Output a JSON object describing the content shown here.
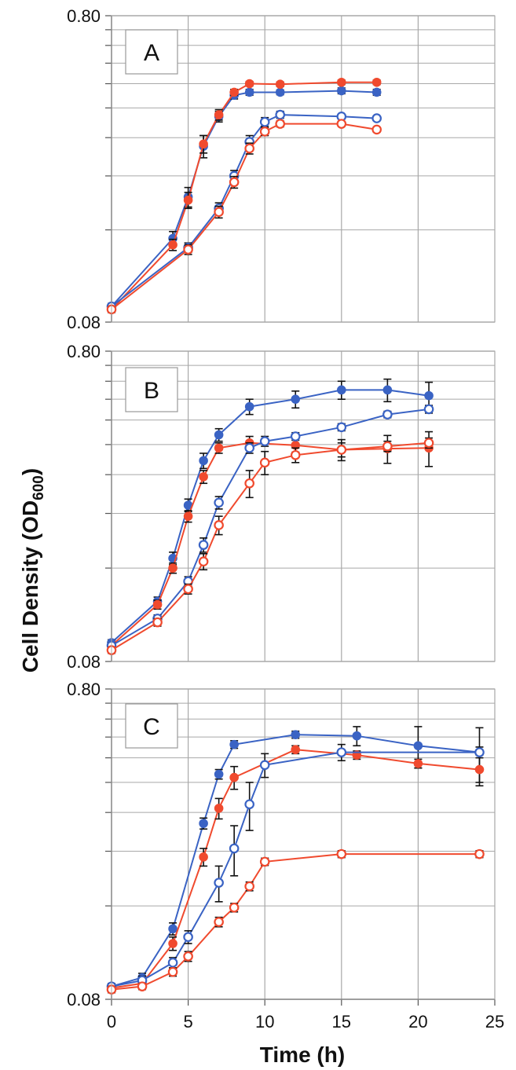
{
  "figure": {
    "ylabel_main": "Cell Density (OD",
    "ylabel_sub": "600",
    "ylabel_close": ")",
    "xlabel": "Time (h)"
  },
  "colors": {
    "blue": "#3a63c4",
    "red": "#f04a2e",
    "grid": "#a8a8a8",
    "axis": "#555555"
  },
  "chart_data": [
    {
      "type": "line",
      "panel_label": "A",
      "yscale": "log",
      "ylim": [
        0.08,
        0.8
      ],
      "ytick_labels": [
        "0.80",
        "0.08"
      ],
      "xlim": [
        0,
        25
      ],
      "x_ticks_shown": false,
      "grid": true,
      "series": [
        {
          "marker": "filled",
          "color": "blue",
          "x": [
            0,
            4,
            5,
            6,
            7,
            8,
            9,
            11,
            15,
            17.3
          ],
          "y": [
            0.09,
            0.15,
            0.205,
            0.3,
            0.375,
            0.44,
            0.45,
            0.45,
            0.455,
            0.45
          ],
          "err": [
            0.002,
            0.008,
            0.015,
            0.025,
            0.015,
            0.012,
            0.01,
            0.008,
            0.01,
            0.01
          ]
        },
        {
          "marker": "filled",
          "color": "red",
          "x": [
            0,
            4,
            5,
            6,
            7,
            8,
            9,
            11,
            15,
            17.3
          ],
          "y": [
            0.088,
            0.143,
            0.2,
            0.305,
            0.38,
            0.45,
            0.48,
            0.478,
            0.485,
            0.485
          ],
          "err": [
            0.002,
            0.006,
            0.012,
            0.02,
            0.015,
            0.01,
            0.008,
            0.008,
            0.008,
            0.008
          ]
        },
        {
          "marker": "open",
          "color": "blue",
          "x": [
            0,
            5,
            7,
            8,
            9,
            10,
            11,
            15,
            17.3
          ],
          "y": [
            0.09,
            0.14,
            0.188,
            0.24,
            0.31,
            0.36,
            0.38,
            0.375,
            0.37
          ],
          "err": [
            0.002,
            0.005,
            0.008,
            0.01,
            0.015,
            0.012,
            0.01,
            0.006,
            0.006
          ]
        },
        {
          "marker": "open",
          "color": "red",
          "x": [
            0,
            5,
            7,
            8,
            9,
            10,
            11,
            15,
            17.3
          ],
          "y": [
            0.088,
            0.138,
            0.183,
            0.229,
            0.295,
            0.335,
            0.355,
            0.355,
            0.34
          ],
          "err": [
            0.002,
            0.005,
            0.008,
            0.01,
            0.012,
            0.01,
            0.008,
            0.006,
            0.006
          ]
        }
      ]
    },
    {
      "type": "line",
      "panel_label": "B",
      "yscale": "log",
      "ylim": [
        0.08,
        0.8
      ],
      "ytick_labels": [
        "0.80",
        "0.08"
      ],
      "xlim": [
        0,
        25
      ],
      "x_ticks_shown": false,
      "grid": true,
      "series": [
        {
          "marker": "filled",
          "color": "blue",
          "x": [
            0,
            3,
            4,
            5,
            6,
            7,
            9,
            12,
            15,
            18,
            20.7
          ],
          "y": [
            0.092,
            0.125,
            0.172,
            0.255,
            0.355,
            0.43,
            0.53,
            0.56,
            0.6,
            0.6,
            0.575
          ],
          "err": [
            0.002,
            0.004,
            0.008,
            0.012,
            0.02,
            0.02,
            0.03,
            0.035,
            0.04,
            0.05,
            0.06
          ]
        },
        {
          "marker": "filled",
          "color": "red",
          "x": [
            0,
            3,
            4,
            5,
            6,
            7,
            9,
            12,
            15,
            18,
            20.7
          ],
          "y": [
            0.09,
            0.122,
            0.16,
            0.235,
            0.315,
            0.39,
            0.405,
            0.398,
            0.385,
            0.388,
            0.39
          ],
          "err": [
            0.002,
            0.004,
            0.006,
            0.01,
            0.015,
            0.015,
            0.02,
            0.02,
            0.03,
            0.04,
            0.05
          ]
        },
        {
          "marker": "open",
          "color": "blue",
          "x": [
            0,
            3,
            5,
            6,
            7,
            9,
            10,
            12,
            15,
            18,
            20.7
          ],
          "y": [
            0.09,
            0.11,
            0.145,
            0.19,
            0.26,
            0.39,
            0.41,
            0.425,
            0.455,
            0.5,
            0.52
          ],
          "err": [
            0.002,
            0.003,
            0.005,
            0.01,
            0.012,
            0.015,
            0.015,
            0.012,
            0.012,
            0.012,
            0.015
          ]
        },
        {
          "marker": "open",
          "color": "red",
          "x": [
            0,
            3,
            5,
            6,
            7,
            9,
            10,
            12,
            15,
            18,
            20.7
          ],
          "y": [
            0.087,
            0.107,
            0.137,
            0.168,
            0.22,
            0.3,
            0.35,
            0.37,
            0.385,
            0.395,
            0.405
          ],
          "err": [
            0.002,
            0.003,
            0.005,
            0.01,
            0.015,
            0.03,
            0.03,
            0.02,
            0.02,
            0.015,
            0.015
          ]
        }
      ]
    },
    {
      "type": "line",
      "panel_label": "C",
      "yscale": "log",
      "ylim": [
        0.08,
        0.8
      ],
      "ytick_labels": [
        "0.80",
        "0.08"
      ],
      "xlim": [
        0,
        25
      ],
      "xticks": [
        0,
        5,
        10,
        15,
        20,
        25
      ],
      "xlabel": "Time (h)",
      "grid": true,
      "series": [
        {
          "marker": "filled",
          "color": "blue",
          "x": [
            0,
            2,
            4,
            6,
            7,
            8,
            12,
            16,
            20,
            24
          ],
          "y": [
            0.088,
            0.094,
            0.135,
            0.295,
            0.425,
            0.53,
            0.57,
            0.565,
            0.525,
            0.5
          ],
          "err": [
            0.002,
            0.003,
            0.006,
            0.012,
            0.015,
            0.015,
            0.015,
            0.04,
            0.08,
            0.1
          ]
        },
        {
          "marker": "filled",
          "color": "red",
          "x": [
            0,
            2,
            4,
            6,
            7,
            8,
            12,
            16,
            20,
            24
          ],
          "y": [
            0.087,
            0.09,
            0.121,
            0.23,
            0.33,
            0.415,
            0.51,
            0.49,
            0.46,
            0.44
          ],
          "err": [
            0.002,
            0.003,
            0.006,
            0.015,
            0.025,
            0.035,
            0.015,
            0.015,
            0.015,
            0.05
          ]
        },
        {
          "marker": "open",
          "color": "blue",
          "x": [
            0,
            2,
            4,
            5,
            7,
            8,
            9,
            10,
            15,
            24
          ],
          "y": [
            0.088,
            0.092,
            0.105,
            0.127,
            0.19,
            0.245,
            0.34,
            0.455,
            0.5,
            0.5
          ],
          "err": [
            0.002,
            0.003,
            0.004,
            0.006,
            0.025,
            0.045,
            0.06,
            0.04,
            0.03,
            0.02
          ]
        },
        {
          "marker": "open",
          "color": "red",
          "x": [
            0,
            2,
            4,
            5,
            7,
            8,
            9,
            10,
            15,
            24
          ],
          "y": [
            0.086,
            0.088,
            0.098,
            0.11,
            0.142,
            0.158,
            0.185,
            0.222,
            0.235,
            0.235
          ],
          "err": [
            0.002,
            0.002,
            0.003,
            0.004,
            0.005,
            0.005,
            0.006,
            0.006,
            0.006,
            0.006
          ]
        }
      ]
    }
  ]
}
